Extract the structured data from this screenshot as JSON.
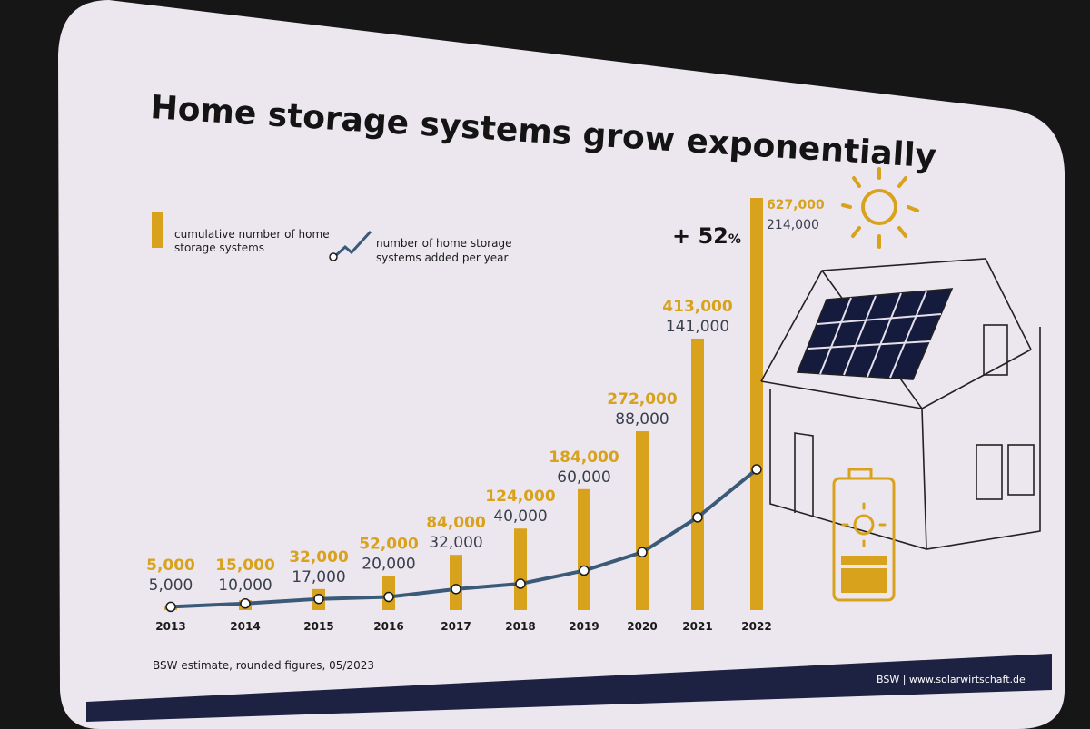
{
  "colors": {
    "bar": "#d9a21c",
    "line": "#3b5a78",
    "slide": "#ece7ef",
    "footer_band": "#1d2142",
    "background": "#161616"
  },
  "chart_data": {
    "type": "bar",
    "title": "Home storage systems grow exponentially",
    "categories": [
      "2013",
      "2014",
      "2015",
      "2016",
      "2017",
      "2018",
      "2019",
      "2020",
      "2021",
      "2022"
    ],
    "series": [
      {
        "name": "cumulative number of home storage systems",
        "type": "bar",
        "values": [
          5000,
          15000,
          32000,
          52000,
          84000,
          124000,
          184000,
          272000,
          413000,
          627000
        ],
        "labels": [
          "5,000",
          "15,000",
          "32,000",
          "52,000",
          "84,000",
          "124,000",
          "184,000",
          "272,000",
          "413,000",
          "627,000"
        ]
      },
      {
        "name": "number of home storage systems added per year",
        "type": "line",
        "values": [
          5000,
          10000,
          17000,
          20000,
          32000,
          40000,
          60000,
          88000,
          141000,
          214000
        ],
        "labels": [
          "5,000",
          "10,000",
          "17,000",
          "20,000",
          "32,000",
          "40,000",
          "60,000",
          "88,000",
          "141,000",
          "214,000"
        ]
      }
    ],
    "ylim": [
      0,
      627000
    ],
    "grid": false,
    "legend_placement": "top-left",
    "annotation": {
      "text": "+ 52",
      "unit": "%"
    }
  },
  "legend": {
    "bar_line1": "cumulative number of home",
    "bar_line2": "storage systems",
    "line_line1": "number of home storage",
    "line_line2": "systems added per year"
  },
  "footer": {
    "note": "BSW estimate, rounded figures, 05/2023",
    "source": "BSW | www.solarwirtschaft.de"
  }
}
